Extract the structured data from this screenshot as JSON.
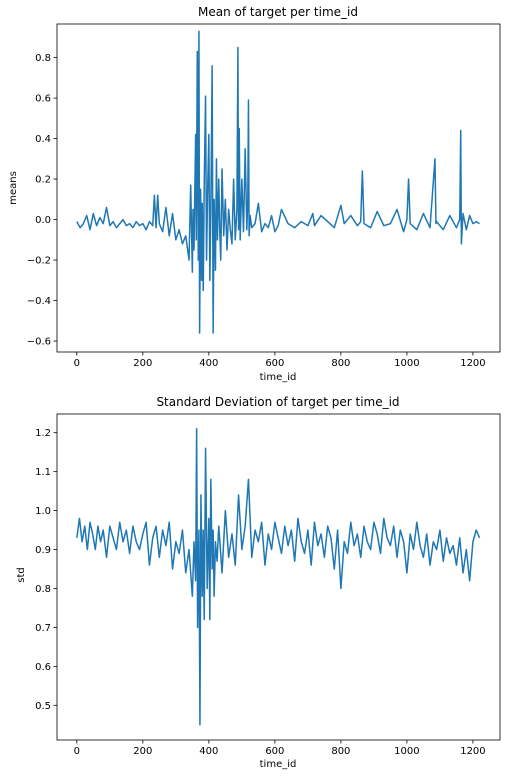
{
  "chart_data": [
    {
      "type": "line",
      "title": "Mean of target per time_id",
      "xlabel": "time_id",
      "ylabel": "means",
      "xlim": [
        -60,
        1282
      ],
      "ylim": [
        -0.654,
        0.966
      ],
      "xticks": [
        0,
        200,
        400,
        600,
        800,
        1000,
        1200
      ],
      "xtick_labels": [
        "0",
        "200",
        "400",
        "600",
        "800",
        "1000",
        "1200"
      ],
      "yticks": [
        -0.6,
        -0.4,
        -0.2,
        0.0,
        0.2,
        0.4,
        0.6,
        0.8
      ],
      "ytick_labels": [
        "−0.6",
        "−0.4",
        "−0.2",
        "0.0",
        "0.2",
        "0.4",
        "0.6",
        "0.8"
      ],
      "grid": false,
      "series": [
        {
          "color": "#1f77b4",
          "x": [
            0,
            10,
            20,
            30,
            40,
            50,
            60,
            70,
            80,
            90,
            100,
            110,
            120,
            130,
            140,
            150,
            160,
            170,
            180,
            190,
            200,
            210,
            220,
            230,
            235,
            240,
            245,
            250,
            260,
            270,
            280,
            290,
            300,
            310,
            320,
            330,
            340,
            345,
            350,
            352,
            355,
            360,
            362,
            365,
            368,
            370,
            372,
            375,
            378,
            380,
            383,
            386,
            390,
            393,
            396,
            400,
            403,
            406,
            410,
            413,
            416,
            420,
            423,
            426,
            430,
            433,
            436,
            440,
            445,
            450,
            455,
            460,
            465,
            470,
            475,
            480,
            485,
            488,
            490,
            492,
            495,
            500,
            505,
            510,
            515,
            518,
            520,
            522,
            525,
            530,
            540,
            550,
            560,
            570,
            580,
            590,
            600,
            610,
            620,
            640,
            660,
            680,
            700,
            715,
            720,
            740,
            760,
            780,
            800,
            810,
            830,
            850,
            860,
            865,
            870,
            890,
            910,
            930,
            950,
            970,
            990,
            1000,
            1005,
            1010,
            1030,
            1050,
            1070,
            1085,
            1088,
            1090,
            1110,
            1130,
            1150,
            1160,
            1163,
            1165,
            1170,
            1180,
            1190,
            1200,
            1210,
            1220
          ],
          "y": [
            -0.01,
            -0.04,
            -0.02,
            0.02,
            -0.05,
            0.03,
            -0.03,
            0.01,
            -0.02,
            0.06,
            -0.03,
            -0.01,
            -0.04,
            -0.02,
            0.0,
            -0.03,
            -0.02,
            -0.04,
            -0.01,
            -0.03,
            -0.02,
            -0.05,
            -0.01,
            -0.03,
            0.12,
            -0.04,
            0.12,
            -0.02,
            -0.06,
            0.06,
            -0.08,
            0.03,
            -0.1,
            -0.05,
            -0.12,
            -0.08,
            -0.2,
            0.17,
            -0.26,
            0.05,
            -0.15,
            0.42,
            -0.1,
            0.83,
            -0.2,
            0.93,
            -0.56,
            0.15,
            -0.3,
            0.08,
            -0.35,
            0.18,
            0.61,
            -0.2,
            0.12,
            0.42,
            -0.3,
            0.05,
            0.76,
            -0.56,
            0.1,
            -0.25,
            0.3,
            -0.1,
            0.2,
            -0.05,
            -0.2,
            0.25,
            -0.08,
            0.1,
            -0.15,
            0.05,
            -0.05,
            -0.12,
            0.2,
            -0.1,
            0.05,
            0.85,
            -0.05,
            0.45,
            -0.1,
            0.2,
            -0.06,
            0.35,
            -0.05,
            0.1,
            0.59,
            -0.08,
            0.02,
            -0.04,
            -0.02,
            0.08,
            -0.06,
            -0.02,
            -0.04,
            0.02,
            -0.06,
            -0.03,
            0.05,
            -0.02,
            -0.04,
            -0.01,
            -0.03,
            0.03,
            -0.03,
            0.02,
            -0.01,
            -0.04,
            0.07,
            -0.02,
            0.02,
            -0.03,
            -0.01,
            0.24,
            -0.02,
            -0.04,
            0.04,
            -0.03,
            -0.02,
            0.05,
            -0.06,
            0.0,
            0.2,
            -0.02,
            -0.05,
            0.03,
            -0.04,
            0.3,
            -0.02,
            -0.01,
            -0.05,
            0.02,
            -0.04,
            0.0,
            0.44,
            -0.12,
            0.03,
            -0.05,
            0.02,
            -0.02,
            -0.01,
            -0.02
          ]
        }
      ]
    },
    {
      "type": "line",
      "title": "Standard Deviation of target per time_id",
      "xlabel": "time_id",
      "ylabel": "std",
      "xlim": [
        -60,
        1282
      ],
      "ylim": [
        0.411,
        1.248
      ],
      "xticks": [
        0,
        200,
        400,
        600,
        800,
        1000,
        1200
      ],
      "xtick_labels": [
        "0",
        "200",
        "400",
        "600",
        "800",
        "1000",
        "1200"
      ],
      "yticks": [
        0.5,
        0.6,
        0.7,
        0.8,
        0.9,
        1.0,
        1.1,
        1.2
      ],
      "ytick_labels": [
        "0.5",
        "0.6",
        "0.7",
        "0.8",
        "0.9",
        "1.0",
        "1.1",
        "1.2"
      ],
      "grid": false,
      "series": [
        {
          "color": "#1f77b4",
          "x": [
            0,
            8,
            16,
            24,
            32,
            40,
            48,
            56,
            64,
            72,
            80,
            90,
            100,
            110,
            120,
            130,
            140,
            150,
            160,
            170,
            180,
            190,
            200,
            210,
            220,
            230,
            240,
            250,
            260,
            270,
            280,
            290,
            300,
            310,
            320,
            330,
            340,
            350,
            355,
            360,
            363,
            366,
            370,
            373,
            376,
            380,
            383,
            386,
            390,
            395,
            400,
            403,
            406,
            410,
            413,
            416,
            420,
            425,
            430,
            440,
            450,
            460,
            470,
            480,
            490,
            500,
            510,
            520,
            530,
            540,
            550,
            560,
            570,
            580,
            590,
            600,
            610,
            620,
            630,
            640,
            650,
            660,
            670,
            680,
            690,
            700,
            710,
            720,
            730,
            740,
            750,
            760,
            770,
            780,
            790,
            800,
            810,
            820,
            830,
            840,
            850,
            860,
            870,
            880,
            890,
            900,
            910,
            920,
            930,
            940,
            950,
            960,
            970,
            980,
            990,
            1000,
            1010,
            1020,
            1030,
            1040,
            1050,
            1060,
            1070,
            1080,
            1090,
            1100,
            1110,
            1120,
            1130,
            1140,
            1150,
            1160,
            1170,
            1180,
            1190,
            1200,
            1210,
            1220
          ],
          "y": [
            0.93,
            0.98,
            0.92,
            0.96,
            0.9,
            0.97,
            0.94,
            0.9,
            0.96,
            0.92,
            0.95,
            0.88,
            0.96,
            0.93,
            0.9,
            0.97,
            0.92,
            0.95,
            0.89,
            0.96,
            0.92,
            0.9,
            0.94,
            0.97,
            0.86,
            0.93,
            0.96,
            0.88,
            0.95,
            0.91,
            0.97,
            0.85,
            0.92,
            0.89,
            0.95,
            0.84,
            0.9,
            0.78,
            0.92,
            0.82,
            1.21,
            0.7,
            0.95,
            0.45,
            1.04,
            0.78,
            0.95,
            0.72,
            1.16,
            0.8,
            0.98,
            0.72,
            1.08,
            0.85,
            0.95,
            0.78,
            0.92,
            0.87,
            0.96,
            0.84,
            1.0,
            0.88,
            0.94,
            0.86,
            1.04,
            0.9,
            0.96,
            1.08,
            0.88,
            0.95,
            0.92,
            0.97,
            0.86,
            0.94,
            0.9,
            0.97,
            0.93,
            0.89,
            0.96,
            0.91,
            0.95,
            0.87,
            0.98,
            0.92,
            0.89,
            0.95,
            0.86,
            0.97,
            0.91,
            0.94,
            0.88,
            0.96,
            0.93,
            0.85,
            0.95,
            0.8,
            0.92,
            0.89,
            0.97,
            0.91,
            0.94,
            0.88,
            0.96,
            0.92,
            0.9,
            0.97,
            0.94,
            0.89,
            0.98,
            0.93,
            0.91,
            0.96,
            0.88,
            0.95,
            0.92,
            0.84,
            0.94,
            0.9,
            0.97,
            0.91,
            0.88,
            0.94,
            0.86,
            0.92,
            0.9,
            0.95,
            0.87,
            0.93,
            0.89,
            0.91,
            0.86,
            0.93,
            0.84,
            0.9,
            0.82,
            0.92,
            0.95,
            0.93
          ]
        }
      ]
    }
  ]
}
